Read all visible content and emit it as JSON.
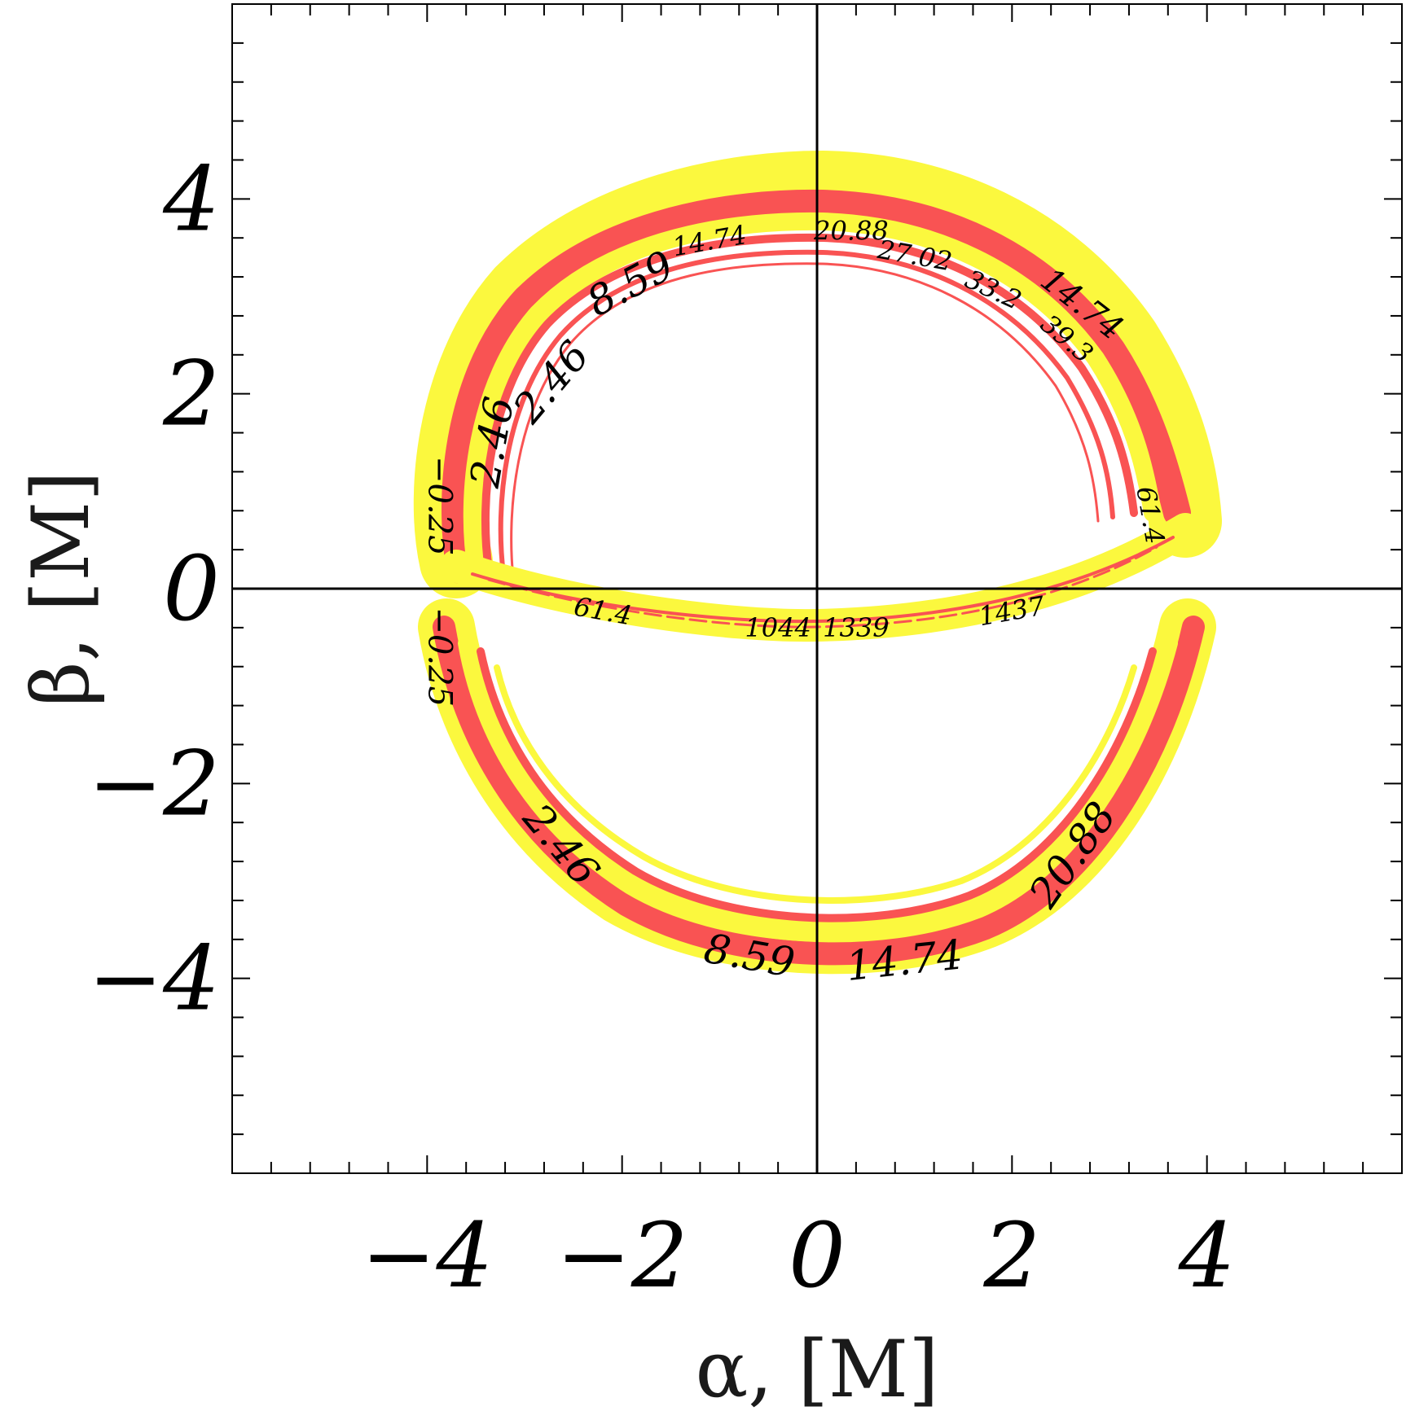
{
  "chart_data": {
    "type": "contour",
    "title": "",
    "xlabel": "α, [M]",
    "ylabel": "β, [M]",
    "xlim": [
      -6,
      6
    ],
    "ylim": [
      -6,
      6
    ],
    "x_ticks": [
      -4,
      -2,
      0,
      2,
      4
    ],
    "y_ticks": [
      -4,
      -2,
      0,
      2,
      4
    ],
    "x_tick_labels": [
      "−4",
      "−2",
      "0",
      "2",
      "4"
    ],
    "y_tick_labels": [
      "−4",
      "−2",
      "0",
      "2",
      "4"
    ],
    "minor_tick_step": 0.4,
    "grid": false,
    "colors": {
      "band_a": "#fbf83e",
      "band_b": "#f95353",
      "frame": "#000000"
    },
    "contour_labels": [
      {
        "text": "14.74",
        "x": -1.1,
        "y": 3.55,
        "rotation": -10,
        "size": "small"
      },
      {
        "text": "20.88",
        "x": 0.35,
        "y": 3.65,
        "rotation": 0,
        "size": "small"
      },
      {
        "text": "27.02",
        "x": 1.0,
        "y": 3.4,
        "rotation": 10,
        "size": "small"
      },
      {
        "text": "8.59",
        "x": -1.9,
        "y": 3.1,
        "rotation": -28,
        "size": "large"
      },
      {
        "text": "33.2",
        "x": 1.8,
        "y": 3.05,
        "rotation": 25,
        "size": "small"
      },
      {
        "text": "14.74",
        "x": 2.7,
        "y": 2.9,
        "rotation": 38,
        "size": "medium"
      },
      {
        "text": "39.3",
        "x": 2.55,
        "y": 2.55,
        "rotation": 40,
        "size": "small"
      },
      {
        "text": "2.46",
        "x": -2.7,
        "y": 2.1,
        "rotation": -50,
        "size": "large"
      },
      {
        "text": "2.46",
        "x": -3.3,
        "y": 1.5,
        "rotation": -80,
        "size": "large"
      },
      {
        "text": "−0.25",
        "x": -3.9,
        "y": 0.85,
        "rotation": 90,
        "size": "medium"
      },
      {
        "text": "61.4",
        "x": 3.4,
        "y": 0.75,
        "rotation": 80,
        "size": "small"
      },
      {
        "text": "61.4",
        "x": -2.2,
        "y": -0.25,
        "rotation": 10,
        "size": "small"
      },
      {
        "text": "1044",
        "x": -0.4,
        "y": -0.42,
        "rotation": 0,
        "size": "small"
      },
      {
        "text": "1339",
        "x": 0.4,
        "y": -0.42,
        "rotation": 0,
        "size": "small"
      },
      {
        "text": "1437",
        "x": 2.0,
        "y": -0.25,
        "rotation": -10,
        "size": "small"
      },
      {
        "text": "−0.25",
        "x": -3.9,
        "y": -0.7,
        "rotation": 90,
        "size": "medium"
      },
      {
        "text": "2.46",
        "x": -2.65,
        "y": -2.65,
        "rotation": 50,
        "size": "large"
      },
      {
        "text": "20.88",
        "x": 2.65,
        "y": -2.75,
        "rotation": -55,
        "size": "large"
      },
      {
        "text": "8.59",
        "x": -0.7,
        "y": -3.8,
        "rotation": 10,
        "size": "large"
      },
      {
        "text": "14.74",
        "x": 0.9,
        "y": -3.85,
        "rotation": -6,
        "size": "large"
      }
    ]
  }
}
